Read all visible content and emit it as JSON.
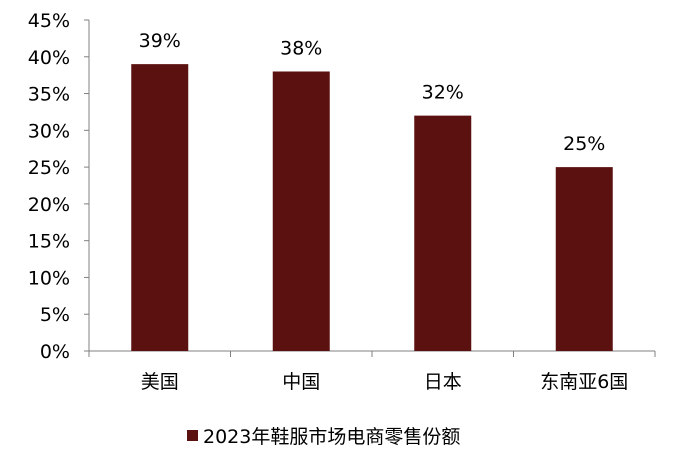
{
  "chart_data": {
    "type": "bar",
    "categories": [
      "美国",
      "中国",
      "日本",
      "东南亚6国"
    ],
    "series": [
      {
        "name": "2023年鞋服市场电商零售份额",
        "values": [
          39,
          38,
          32,
          25
        ],
        "value_labels": [
          "39%",
          "38%",
          "32%",
          "25%"
        ],
        "color": "#5c1111"
      }
    ],
    "ylim": [
      0,
      45
    ],
    "yticks": [
      0,
      5,
      10,
      15,
      20,
      25,
      30,
      35,
      40,
      45
    ],
    "ytick_labels": [
      "0%",
      "5%",
      "10%",
      "15%",
      "20%",
      "25%",
      "30%",
      "35%",
      "40%",
      "45%"
    ],
    "grid": false,
    "legend_position": "bottom-center",
    "axis_color": "#808080"
  }
}
